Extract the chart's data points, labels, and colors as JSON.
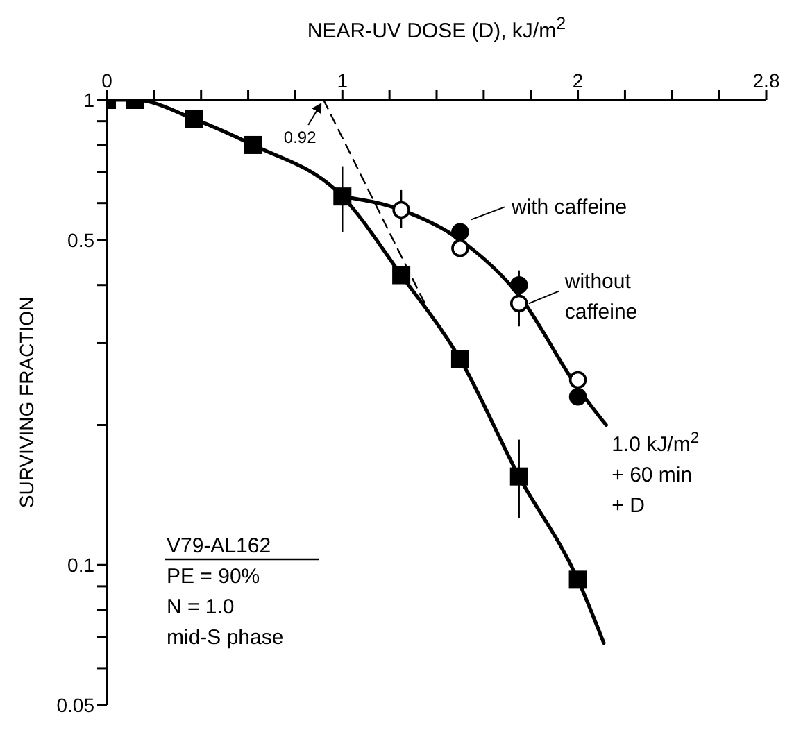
{
  "chart_data": {
    "type": "scatter",
    "xlabel": "NEAR-UV  DOSE (D),  kJ/m$^{2}$",
    "ylabel": "SURVIVING  FRACTION",
    "xlim": [
      0,
      2.8
    ],
    "xticks": [
      0,
      {
        "value": 0.2,
        "label": null
      },
      {
        "value": 0.4,
        "label": null
      },
      {
        "value": 0.6,
        "label": null
      },
      {
        "value": 0.8,
        "label": null
      },
      1,
      {
        "value": 1.2,
        "label": null
      },
      {
        "value": 1.4,
        "label": null
      },
      {
        "value": 1.6,
        "label": null
      },
      {
        "value": 1.8,
        "label": null
      },
      2,
      {
        "value": 2.2,
        "label": null
      },
      {
        "value": 2.4,
        "label": null
      },
      {
        "value": 2.6,
        "label": null
      },
      2.8
    ],
    "ylim": [
      0.05,
      1
    ],
    "yticks": [
      0.05,
      {
        "value": 0.06,
        "label": null
      },
      {
        "value": 0.07,
        "label": null
      },
      {
        "value": 0.08,
        "label": null
      },
      {
        "value": 0.09,
        "label": null
      },
      0.1,
      {
        "value": 0.2,
        "label": null
      },
      {
        "value": 0.3,
        "label": null
      },
      {
        "value": 0.4,
        "label": null
      },
      0.5,
      {
        "value": 0.6,
        "label": null
      },
      {
        "value": 0.7,
        "label": null
      },
      {
        "value": 0.8,
        "label": null
      },
      {
        "value": 0.9,
        "label": null
      },
      1
    ],
    "log": "y",
    "grid": false,
    "series": [
      {
        "type": "line",
        "marker": "none",
        "color": "#000000",
        "x": [
          0,
          0.12,
          0.37,
          0.62,
          1.0,
          1.25,
          1.5,
          1.75,
          2.0,
          2.11
        ],
        "values": [
          1,
          1,
          0.91,
          0.8,
          0.62,
          0.42,
          0.277,
          0.155,
          0.093,
          0.068
        ]
      },
      {
        "type": "line",
        "marker": "none",
        "color": "#000000",
        "x": [
          1.0,
          1.25,
          1.5,
          1.75,
          2.0,
          2.12
        ],
        "values": [
          0.62,
          0.58,
          0.5,
          0.38,
          0.24,
          0.2
        ]
      },
      {
        "type": "line",
        "marker": "none",
        "line_style": "dashed",
        "color": "#000000",
        "x": [
          0.92,
          1.35
        ],
        "values": [
          1,
          0.365
        ]
      },
      {
        "marker": "square",
        "color": "#000000",
        "x": [
          0,
          0.12,
          0.37,
          0.62,
          1.0,
          1.25,
          1.5,
          1.75,
          2.0
        ],
        "values": [
          1,
          1,
          0.91,
          0.8,
          0.62,
          0.42,
          0.277,
          0.155,
          0.093
        ],
        "errors": [
          null,
          null,
          null,
          null,
          [
            0.52,
            0.72
          ],
          null,
          null,
          [
            0.126,
            0.186
          ],
          null
        ]
      },
      {
        "marker": "circle",
        "color": "#000000",
        "x": [
          1.5,
          1.75,
          2.0
        ],
        "values": [
          0.52,
          0.4,
          0.23
        ]
      },
      {
        "marker": "circle",
        "color": "#ffffff",
        "x": [
          1.25,
          1.5,
          1.75,
          2.0
        ],
        "values": [
          0.58,
          0.48,
          0.365,
          0.25
        ],
        "errors": [
          [
            0.53,
            0.64
          ],
          null,
          [
            0.326,
            0.43
          ],
          null
        ]
      }
    ],
    "annotations": [
      {
        "text": "0.92",
        "x": 0.92,
        "y": 1
      },
      {
        "text": "with  caffeine",
        "x": 1.5,
        "y": 0.52
      },
      {
        "text": "without\ncaffeine",
        "x": 1.75,
        "y": 0.365
      },
      {
        "text": "1.0 kJ/m$^{2}$\n+ 60 min\n+ D",
        "x": 2.12,
        "y": 0.2
      },
      "V79-AL162",
      "PE = 90%",
      "N = 1.0",
      "mid-S  phase"
    ]
  }
}
